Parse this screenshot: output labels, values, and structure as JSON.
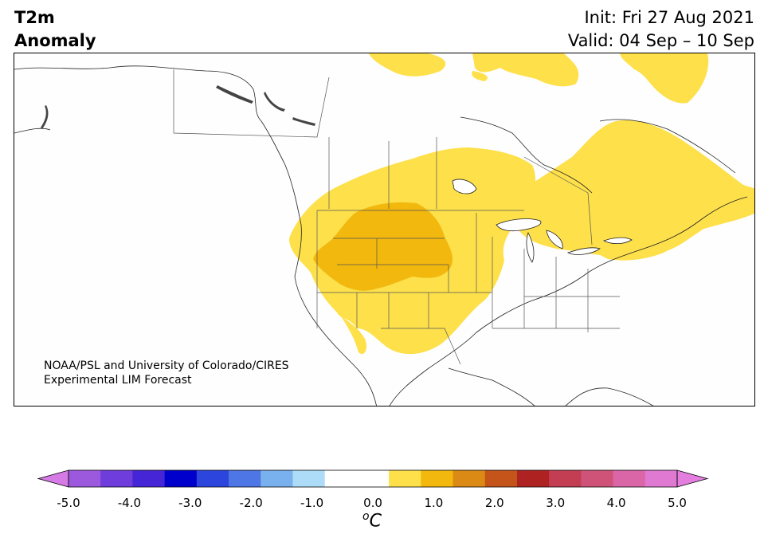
{
  "title": {
    "variable": "T2m",
    "subtitle": "Anomaly",
    "init": "Init: Fri 27 Aug 2021",
    "valid": "Valid: 04 Sep – 10 Sep"
  },
  "credit": {
    "line1": "NOAA/PSL and University of Colorado/CIRES",
    "line2": "Experimental LIM Forecast"
  },
  "map": {
    "region": "North America",
    "anomaly_regions": [
      {
        "area": "Central and western United States / southern Canadian Prairies",
        "level": "0.5 to 1.5",
        "color": "#FDE04A"
      },
      {
        "area": "Northern Rockies to Great Plains core",
        "level": "1.5 to 2.0",
        "color": "#F2B80E"
      },
      {
        "area": "Eastern Canada / Quebec / Labrador",
        "level": "0.5 to 1.5",
        "color": "#FDE04A"
      },
      {
        "area": "Canadian Arctic Archipelago / Baffin",
        "level": "0.5 to 1.5",
        "color": "#FDE04A"
      }
    ]
  },
  "colorbar": {
    "unit_base": "C",
    "unit_prefix": "o",
    "ticks": [
      "-5.0",
      "-4.0",
      "-3.0",
      "-2.0",
      "-1.0",
      "0.0",
      "1.0",
      "2.0",
      "3.0",
      "4.0",
      "5.0"
    ],
    "colors": [
      "#9D59DE",
      "#6F3DDC",
      "#4525D5",
      "#0000CD",
      "#2C46DD",
      "#4E76E4",
      "#78B1EE",
      "#ACDCF8",
      "#FFFFFF",
      "#FFFFFF",
      "#FDE04A",
      "#F2B80E",
      "#DC8A16",
      "#C5541B",
      "#AF2222",
      "#C33E52",
      "#CF5378",
      "#DA66A8",
      "#E079D2"
    ],
    "under_color": "#D67AE6",
    "over_color": "#E47EDE"
  }
}
